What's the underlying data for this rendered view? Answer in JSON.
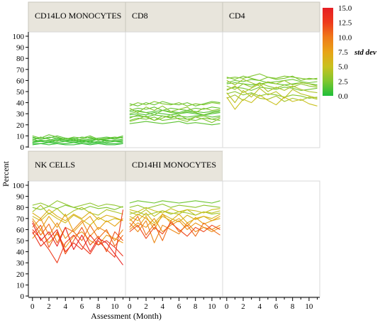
{
  "chart_data": {
    "type": "line",
    "xlabel": "Assessment (Month)",
    "ylabel": "Percent",
    "xlim": [
      -0.5,
      11.3
    ],
    "ylim": [
      0,
      100
    ],
    "x_ticks": [
      0,
      2,
      4,
      6,
      8,
      10
    ],
    "y_ticks": [
      0,
      10,
      20,
      30,
      40,
      50,
      60,
      70,
      80,
      90,
      100
    ],
    "x": [
      0,
      1,
      2,
      3,
      4,
      5,
      6,
      7,
      8,
      9,
      10,
      11
    ],
    "color_scale": {
      "title": "std dev",
      "ticks": [
        15.0,
        12.5,
        10.0,
        7.5,
        5.0,
        2.5,
        0.0
      ],
      "tick_labels": [
        "15.0",
        "12.5",
        "10.0",
        "7.5",
        "5.0",
        "2.5",
        "0.0"
      ],
      "colors": [
        "#1fbf3a",
        "#7fc62e",
        "#c9c11f",
        "#e8a317",
        "#ef7a1a",
        "#ee3a1c",
        "#e61e25"
      ],
      "placement": "top-right"
    },
    "panels": [
      {
        "title": "CD14LO MONOCYTES",
        "series": [
          {
            "sd": 1.2,
            "values": [
              8,
              7,
              9,
              8,
              7,
              8,
              6,
              7,
              8,
              9,
              8,
              9
            ]
          },
          {
            "sd": 0.8,
            "values": [
              4,
              5,
              4,
              6,
              5,
              4,
              5,
              4,
              5,
              4,
              5,
              4
            ]
          },
          {
            "sd": 1.5,
            "values": [
              6,
              9,
              7,
              5,
              8,
              6,
              7,
              9,
              6,
              7,
              8,
              10
            ]
          },
          {
            "sd": 0.5,
            "values": [
              3,
              3,
              4,
              3,
              3,
              4,
              3,
              3,
              4,
              3,
              3,
              3
            ]
          },
          {
            "sd": 1.0,
            "values": [
              5,
              6,
              5,
              7,
              6,
              5,
              6,
              5,
              7,
              6,
              5,
              6
            ]
          },
          {
            "sd": 1.8,
            "values": [
              10,
              8,
              11,
              9,
              7,
              9,
              8,
              10,
              7,
              8,
              9,
              8
            ]
          },
          {
            "sd": 0.6,
            "values": [
              2,
              3,
              2,
              3,
              2,
              2,
              3,
              2,
              3,
              2,
              2,
              3
            ]
          },
          {
            "sd": 1.1,
            "values": [
              7,
              5,
              6,
              8,
              6,
              7,
              5,
              6,
              7,
              5,
              6,
              7
            ]
          },
          {
            "sd": 0.9,
            "values": [
              4,
              6,
              5,
              4,
              5,
              6,
              4,
              5,
              4,
              6,
              5,
              5
            ]
          },
          {
            "sd": 1.4,
            "values": [
              9,
              7,
              8,
              10,
              8,
              7,
              9,
              8,
              6,
              8,
              7,
              9
            ]
          }
        ]
      },
      {
        "title": "CD8",
        "series": [
          {
            "sd": 2.5,
            "values": [
              37,
              40,
              38,
              41,
              39,
              38,
              40,
              37,
              39,
              38,
              40,
              39
            ]
          },
          {
            "sd": 1.8,
            "values": [
              33,
              35,
              34,
              36,
              33,
              35,
              34,
              33,
              35,
              34,
              36,
              35
            ]
          },
          {
            "sd": 2.0,
            "values": [
              30,
              32,
              31,
              29,
              33,
              31,
              30,
              32,
              31,
              29,
              31,
              32
            ]
          },
          {
            "sd": 1.5,
            "values": [
              27,
              28,
              27,
              29,
              28,
              27,
              28,
              27,
              28,
              29,
              27,
              28
            ]
          },
          {
            "sd": 2.2,
            "values": [
              24,
              26,
              25,
              27,
              24,
              25,
              26,
              25,
              24,
              26,
              25,
              24
            ]
          },
          {
            "sd": 1.6,
            "values": [
              21,
              22,
              23,
              22,
              21,
              22,
              23,
              21,
              22,
              21,
              20,
              21
            ]
          },
          {
            "sd": 2.8,
            "values": [
              35,
              31,
              36,
              33,
              37,
              32,
              34,
              36,
              31,
              35,
              33,
              34
            ]
          },
          {
            "sd": 1.2,
            "values": [
              29,
              30,
              29,
              31,
              30,
              29,
              30,
              31,
              30,
              29,
              30,
              31
            ]
          },
          {
            "sd": 2.4,
            "values": [
              26,
              29,
              27,
              24,
              28,
              26,
              29,
              25,
              27,
              28,
              25,
              27
            ]
          },
          {
            "sd": 1.9,
            "values": [
              39,
              37,
              40,
              38,
              41,
              39,
              38,
              40,
              37,
              39,
              41,
              40
            ]
          },
          {
            "sd": 2.6,
            "values": [
              23,
              25,
              28,
              24,
              26,
              29,
              25,
              23,
              27,
              25,
              22,
              26
            ]
          },
          {
            "sd": 1.4,
            "values": [
              32,
              33,
              31,
              32,
              33,
              32,
              31,
              33,
              32,
              31,
              32,
              33
            ]
          }
        ]
      },
      {
        "title": "CD4",
        "series": [
          {
            "sd": 2.5,
            "values": [
              62,
              63,
              62,
              64,
              66,
              63,
              62,
              64,
              63,
              62,
              61,
              62
            ]
          },
          {
            "sd": 2.0,
            "values": [
              58,
              60,
              59,
              61,
              60,
              58,
              59,
              60,
              61,
              59,
              58,
              59
            ]
          },
          {
            "sd": 3.0,
            "values": [
              55,
              52,
              57,
              54,
              58,
              55,
              53,
              56,
              54,
              57,
              55,
              54
            ]
          },
          {
            "sd": 4.5,
            "values": [
              49,
              40,
              51,
              45,
              53,
              47,
              50,
              44,
              52,
              48,
              46,
              44
            ]
          },
          {
            "sd": 2.2,
            "values": [
              52,
              54,
              53,
              51,
              54,
              53,
              52,
              54,
              53,
              51,
              52,
              53
            ]
          },
          {
            "sd": 5.0,
            "values": [
              45,
              34,
              43,
              40,
              47,
              42,
              38,
              45,
              41,
              43,
              39,
              37
            ]
          },
          {
            "sd": 2.8,
            "values": [
              48,
              50,
              47,
              49,
              46,
              48,
              47,
              45,
              47,
              46,
              44,
              45
            ]
          },
          {
            "sd": 3.5,
            "values": [
              60,
              56,
              61,
              58,
              55,
              59,
              57,
              60,
              56,
              58,
              57,
              55
            ]
          },
          {
            "sd": 1.8,
            "values": [
              57,
              58,
              57,
              56,
              57,
              58,
              57,
              56,
              57,
              58,
              57,
              56
            ]
          },
          {
            "sd": 3.8,
            "values": [
              44,
              47,
              42,
              48,
              44,
              43,
              46,
              41,
              44,
              42,
              45,
              43
            ]
          },
          {
            "sd": 2.4,
            "values": [
              63,
              61,
              64,
              62,
              60,
              63,
              61,
              62,
              64,
              60,
              62,
              61
            ]
          },
          {
            "sd": 4.0,
            "values": [
              51,
              55,
              49,
              53,
              57,
              50,
              54,
              51,
              55,
              52,
              50,
              49
            ]
          }
        ]
      },
      {
        "title": "NK CELLS",
        "series": [
          {
            "sd": 2.5,
            "values": [
              80,
              78,
              81,
              79,
              82,
              80,
              78,
              81,
              79,
              80,
              78,
              81
            ]
          },
          {
            "sd": 4.0,
            "values": [
              76,
              82,
              74,
              79,
              72,
              77,
              80,
              75,
              73,
              78,
              76,
              74
            ]
          },
          {
            "sd": 5.5,
            "values": [
              72,
              68,
              75,
              70,
              66,
              73,
              69,
              64,
              71,
              67,
              70,
              68
            ]
          },
          {
            "sd": 7.5,
            "values": [
              70,
              60,
              72,
              62,
              74,
              58,
              66,
              72,
              60,
              68,
              63,
              70
            ]
          },
          {
            "sd": 9.0,
            "values": [
              62,
              70,
              55,
              66,
              52,
              60,
              68,
              54,
              62,
              58,
              50,
              60
            ]
          },
          {
            "sd": 10.5,
            "values": [
              68,
              55,
              65,
              48,
              62,
              58,
              50,
              64,
              52,
              60,
              45,
              55
            ]
          },
          {
            "sd": 12.5,
            "values": [
              60,
              52,
              42,
              30,
              48,
              55,
              45,
              38,
              50,
              42,
              35,
              78
            ]
          },
          {
            "sd": 14.5,
            "values": [
              66,
              50,
              58,
              45,
              62,
              42,
              55,
              40,
              52,
              48,
              38,
              28
            ]
          },
          {
            "sd": 13.0,
            "values": [
              58,
              45,
              52,
              60,
              40,
              48,
              42,
              55,
              46,
              50,
              44,
              36
            ]
          },
          {
            "sd": 6.5,
            "values": [
              75,
              70,
              78,
              72,
              68,
              74,
              70,
              76,
              69,
              73,
              71,
              68
            ]
          },
          {
            "sd": 8.0,
            "values": [
              52,
              60,
              48,
              56,
              44,
              54,
              58,
              50,
              46,
              55,
              52,
              48
            ]
          },
          {
            "sd": 3.0,
            "values": [
              82,
              84,
              81,
              86,
              83,
              80,
              82,
              84,
              81,
              83,
              82,
              80
            ]
          },
          {
            "sd": 11.5,
            "values": [
              56,
              64,
              44,
              58,
              38,
              50,
              62,
              46,
              54,
              40,
              58,
              50
            ]
          }
        ]
      },
      {
        "title": "CD14HI MONOCYTES",
        "series": [
          {
            "sd": 2.0,
            "values": [
              84,
              86,
              85,
              84,
              86,
              85,
              84,
              85,
              86,
              85,
              84,
              86
            ]
          },
          {
            "sd": 3.0,
            "values": [
              80,
              82,
              79,
              81,
              83,
              80,
              82,
              81,
              80,
              82,
              81,
              80
            ]
          },
          {
            "sd": 4.5,
            "values": [
              76,
              73,
              78,
              72,
              77,
              75,
              74,
              78,
              73,
              76,
              75,
              77
            ]
          },
          {
            "sd": 6.0,
            "values": [
              72,
              68,
              75,
              66,
              74,
              70,
              67,
              73,
              69,
              72,
              70,
              74
            ]
          },
          {
            "sd": 7.5,
            "values": [
              70,
              62,
              72,
              60,
              74,
              66,
              70,
              63,
              71,
              65,
              68,
              72
            ]
          },
          {
            "sd": 9.0,
            "values": [
              66,
              58,
              68,
              48,
              64,
              60,
              56,
              66,
              58,
              62,
              60,
              64
            ]
          },
          {
            "sd": 10.5,
            "values": [
              62,
              72,
              55,
              65,
              50,
              68,
              58,
              64,
              54,
              66,
              60,
              55
            ]
          },
          {
            "sd": 5.0,
            "values": [
              78,
              76,
              80,
              77,
              75,
              79,
              76,
              78,
              77,
              75,
              78,
              79
            ]
          },
          {
            "sd": 8.5,
            "values": [
              60,
              66,
              62,
              70,
              58,
              64,
              68,
              60,
              66,
              62,
              58,
              62
            ]
          },
          {
            "sd": 3.5,
            "values": [
              74,
              76,
              73,
              75,
              77,
              74,
              76,
              75,
              73,
              76,
              74,
              75
            ]
          },
          {
            "sd": 6.5,
            "values": [
              68,
              74,
              70,
              64,
              72,
              68,
              74,
              66,
              70,
              72,
              68,
              70
            ]
          },
          {
            "sd": 12.0,
            "values": [
              58,
              64,
              52,
              62,
              56,
              66,
              60,
              54,
              62,
              58,
              64,
              60
            ]
          }
        ]
      }
    ]
  }
}
